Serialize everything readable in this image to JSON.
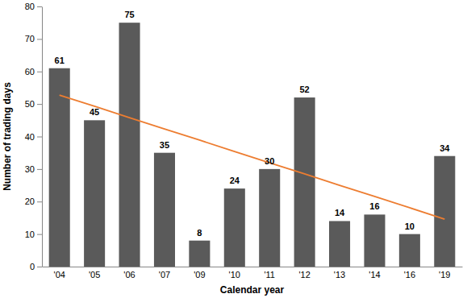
{
  "chart_data": {
    "type": "bar",
    "x_label": "Calendar year",
    "y_label": "Number of trading days",
    "categories": [
      "'04",
      "'05",
      "'06",
      "'07",
      "'09",
      "'10",
      "'11",
      "'12",
      "'13",
      "'14",
      "'16",
      "'19"
    ],
    "series": [
      {
        "type": "bar",
        "color": "#5a5a5a",
        "values": [
          61,
          45,
          75,
          35,
          8,
          24,
          30,
          52,
          14,
          16,
          10,
          34
        ]
      },
      {
        "type": "line",
        "color": "#ed7d31",
        "line_style": "solid",
        "values": [
          52.7,
          49.3,
          45.8,
          42.3,
          38.9,
          35.4,
          31.9,
          28.5,
          25.0,
          21.6,
          18.1,
          14.6
        ]
      }
    ],
    "ylim": [
      0,
      80
    ],
    "yticks": [
      0,
      10,
      20,
      30,
      40,
      50,
      60,
      70,
      80
    ],
    "grid": false,
    "data_labels": true
  }
}
